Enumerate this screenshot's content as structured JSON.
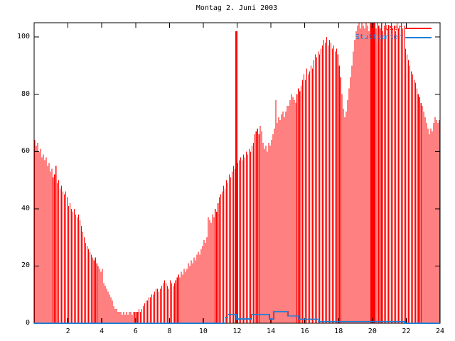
{
  "title": "Montag 2. Juni 2003",
  "legend": [
    {
      "label": "User",
      "color": "#ff0000"
    },
    {
      "label": "Stuttgarter",
      "color": "#1f7fd8"
    }
  ],
  "axes": {
    "y_ticks": [
      0,
      20,
      40,
      60,
      80,
      100
    ],
    "x_ticks": [
      2,
      4,
      6,
      8,
      10,
      12,
      14,
      16,
      18,
      20,
      22,
      24
    ],
    "x_range": [
      0,
      24
    ],
    "y_display_max": 105
  },
  "chart_data": {
    "type": "bar",
    "title": "Montag 2. Juni 2003",
    "xlabel": "",
    "ylabel": "",
    "xlim": [
      0,
      24
    ],
    "ylim": [
      0,
      105
    ],
    "grid": false,
    "legend_position": "top-right-inside",
    "interval_minutes": 5,
    "wide_bar_indices": [
      143,
      239,
      240,
      241
    ],
    "series": [
      {
        "name": "User",
        "type": "bar",
        "color": "#ff0000",
        "values": [
          64,
          62,
          63,
          60,
          61,
          58,
          59,
          57,
          58,
          55,
          56,
          53,
          54,
          51,
          52,
          55,
          49,
          50,
          47,
          48,
          46,
          45,
          46,
          44,
          41,
          42,
          40,
          39,
          40,
          38,
          37,
          38,
          36,
          34,
          32,
          30,
          28,
          27,
          26,
          25,
          24,
          23,
          22,
          23,
          21,
          20,
          19,
          18,
          19,
          14,
          13,
          12,
          11,
          10,
          9,
          8,
          6,
          5,
          5,
          4,
          4,
          4,
          3,
          4,
          3,
          4,
          3,
          4,
          4,
          3,
          4,
          4,
          4,
          4,
          5,
          4,
          5,
          6,
          7,
          8,
          8,
          9,
          9,
          10,
          10,
          11,
          12,
          12,
          11,
          12,
          13,
          14,
          15,
          14,
          13,
          12,
          15,
          14,
          13,
          14,
          15,
          16,
          17,
          16,
          18,
          17,
          19,
          18,
          19,
          21,
          20,
          22,
          21,
          23,
          22,
          24,
          25,
          24,
          26,
          27,
          29,
          28,
          30,
          37,
          36,
          35,
          38,
          37,
          40,
          39,
          42,
          44,
          45,
          46,
          48,
          47,
          50,
          49,
          52,
          51,
          53,
          55,
          54,
          102,
          56,
          57,
          58,
          57,
          59,
          58,
          60,
          59,
          61,
          60,
          62,
          63,
          66,
          67,
          68,
          66,
          69,
          67,
          63,
          61,
          62,
          60,
          63,
          62,
          64,
          66,
          68,
          78,
          70,
          72,
          71,
          73,
          74,
          72,
          74,
          76,
          76,
          78,
          80,
          79,
          78,
          77,
          80,
          82,
          81,
          83,
          85,
          87,
          85,
          89,
          87,
          88,
          90,
          89,
          92,
          94,
          93,
          95,
          94,
          96,
          97,
          99,
          98,
          100,
          97,
          99,
          98,
          96,
          97,
          95,
          96,
          94,
          90,
          86,
          80,
          75,
          72,
          74,
          78,
          82,
          86,
          90,
          95,
          99,
          102,
          104,
          105,
          103,
          105,
          104,
          103,
          105,
          104,
          102,
          105,
          105,
          105,
          105,
          103,
          105,
          104,
          103,
          105,
          102,
          104,
          105,
          103,
          104,
          104,
          105,
          103,
          104,
          102,
          105,
          103,
          104,
          105,
          103,
          104,
          96,
          94,
          92,
          90,
          88,
          87,
          85,
          84,
          82,
          80,
          79,
          77,
          76,
          74,
          72,
          70,
          68,
          66,
          68,
          67,
          70,
          72,
          71,
          70,
          71
        ]
      },
      {
        "name": "Stuttgarter",
        "type": "step-line",
        "color": "#1f7fd8",
        "points": [
          [
            0,
            0
          ],
          [
            11.3,
            0
          ],
          [
            11.3,
            2
          ],
          [
            11.45,
            2
          ],
          [
            11.45,
            3
          ],
          [
            11.95,
            3
          ],
          [
            11.95,
            1.5
          ],
          [
            12.85,
            1.5
          ],
          [
            12.85,
            3
          ],
          [
            13.9,
            3
          ],
          [
            13.9,
            1.5
          ],
          [
            14.15,
            1.5
          ],
          [
            14.15,
            4
          ],
          [
            15.0,
            4
          ],
          [
            15.0,
            2.5
          ],
          [
            15.65,
            2.5
          ],
          [
            15.65,
            1.4
          ],
          [
            16.8,
            1.4
          ],
          [
            16.8,
            0.6
          ],
          [
            21.9,
            0.6
          ],
          [
            21.9,
            0
          ],
          [
            24,
            0
          ]
        ]
      }
    ]
  }
}
